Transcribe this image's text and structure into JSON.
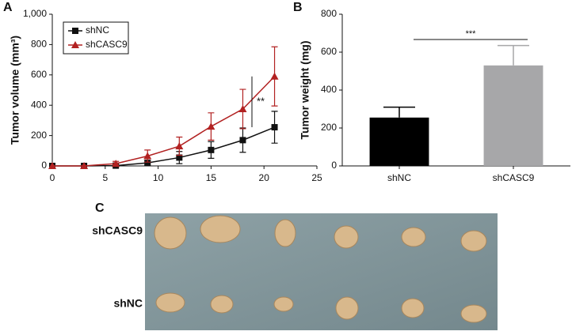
{
  "chart_data": [
    {
      "type": "line",
      "panel_label": "A",
      "ylabel": "Tumor volume (mm³)",
      "x": [
        0,
        3,
        6,
        9,
        12,
        15,
        18,
        21
      ],
      "series": [
        {
          "name": "shNC",
          "color": "#111111",
          "marker": "square",
          "values": [
            0,
            0,
            2,
            20,
            55,
            105,
            170,
            255
          ],
          "errors": [
            0,
            0,
            5,
            15,
            40,
            55,
            80,
            105
          ]
        },
        {
          "name": "shCASC9",
          "color": "#b22222",
          "marker": "triangle",
          "values": [
            0,
            0,
            15,
            65,
            130,
            260,
            375,
            590
          ],
          "errors": [
            0,
            0,
            15,
            40,
            60,
            90,
            130,
            195
          ]
        }
      ],
      "xlim": [
        0,
        25
      ],
      "xticks": [
        0,
        5,
        10,
        15,
        20,
        25
      ],
      "ylim": [
        0,
        1000
      ],
      "yticks": [
        0,
        200,
        400,
        600,
        800,
        {
          "value": 1000,
          "label": "1,000"
        }
      ],
      "legend": "upper-left",
      "annotation": "**"
    },
    {
      "type": "bar",
      "panel_label": "B",
      "ylabel": "Tumor weight (mg)",
      "categories": [
        "shNC",
        "shCASC9"
      ],
      "values": [
        255,
        530
      ],
      "errors": [
        55,
        105
      ],
      "colors": [
        "#000000",
        "#a7a7a9"
      ],
      "ylim": [
        0,
        800
      ],
      "yticks": [
        0,
        200,
        400,
        600,
        800
      ],
      "annotation": "***"
    }
  ],
  "panel_c": {
    "label": "C",
    "rows": [
      "shCASC9",
      "shNC"
    ]
  }
}
